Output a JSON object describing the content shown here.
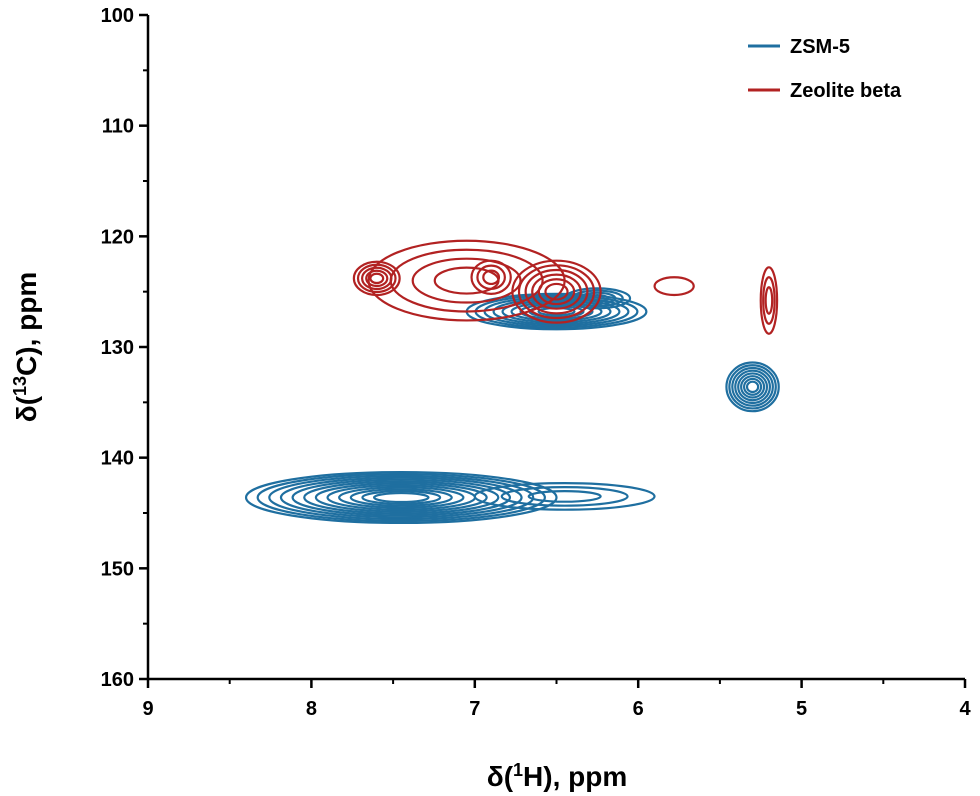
{
  "chart_data": {
    "type": "contour",
    "title": "",
    "xlabel": {
      "prefix": "δ(",
      "sup": "1",
      "suffix": "H), ppm"
    },
    "ylabel": {
      "prefix": "δ(",
      "sup": "13",
      "suffix": "C), ppm"
    },
    "xlim": [
      9,
      4
    ],
    "ylim": [
      100,
      160
    ],
    "x_reversed": true,
    "y_reversed": true,
    "x_ticks": [
      9,
      8,
      7,
      6,
      5,
      4
    ],
    "y_ticks": [
      100,
      110,
      120,
      130,
      140,
      150,
      160
    ],
    "grid": false,
    "legend": {
      "position": "top-right"
    },
    "series": [
      {
        "name": "ZSM-5",
        "color": "#1f6fa0",
        "peaks": [
          {
            "x": 7.45,
            "y": 143.6,
            "wx": 0.95,
            "wy": 2.3,
            "levels": 12
          },
          {
            "x": 6.45,
            "y": 143.5,
            "wx": 0.55,
            "wy": 1.2,
            "levels": 3
          },
          {
            "x": 6.5,
            "y": 126.8,
            "wx": 0.55,
            "wy": 1.6,
            "levels": 9
          },
          {
            "x": 6.25,
            "y": 125.6,
            "wx": 0.2,
            "wy": 0.9,
            "levels": 4
          },
          {
            "x": 5.3,
            "y": 133.6,
            "wx": 0.16,
            "wy": 2.2,
            "levels": 8
          }
        ]
      },
      {
        "name": "Zeolite beta",
        "color": "#b22222",
        "peaks": [
          {
            "x": 7.6,
            "y": 123.8,
            "wx": 0.14,
            "wy": 1.5,
            "levels": 5
          },
          {
            "x": 7.05,
            "y": 124.0,
            "wx": 0.6,
            "wy": 3.6,
            "levels": 4
          },
          {
            "x": 6.9,
            "y": 123.7,
            "wx": 0.12,
            "wy": 1.5,
            "levels": 3
          },
          {
            "x": 6.5,
            "y": 125.0,
            "wx": 0.27,
            "wy": 2.8,
            "levels": 6
          },
          {
            "x": 5.78,
            "y": 124.5,
            "wx": 0.12,
            "wy": 0.8,
            "levels": 1
          },
          {
            "x": 5.2,
            "y": 125.8,
            "wx": 0.05,
            "wy": 3.0,
            "levels": 3
          }
        ]
      }
    ]
  }
}
